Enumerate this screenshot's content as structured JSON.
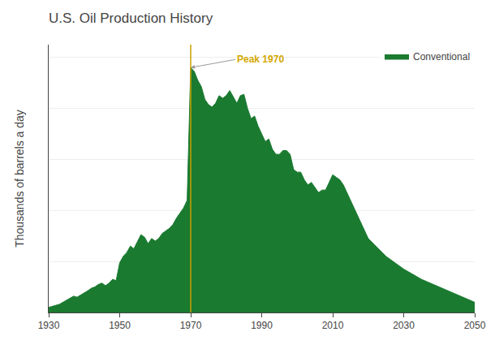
{
  "chart_data": {
    "type": "area",
    "title": "U.S. Oil Production History",
    "ylabel": "Thousands of barrels a day",
    "x": [
      1930,
      1931,
      1932,
      1933,
      1934,
      1935,
      1936,
      1937,
      1938,
      1939,
      1940,
      1941,
      1942,
      1943,
      1944,
      1945,
      1946,
      1947,
      1948,
      1949,
      1950,
      1951,
      1952,
      1953,
      1954,
      1955,
      1956,
      1957,
      1958,
      1959,
      1960,
      1961,
      1962,
      1963,
      1964,
      1965,
      1966,
      1967,
      1968,
      1969,
      1970,
      1971,
      1972,
      1973,
      1974,
      1975,
      1976,
      1977,
      1978,
      1979,
      1980,
      1981,
      1982,
      1983,
      1984,
      1985,
      1986,
      1987,
      1988,
      1989,
      1990,
      1991,
      1992,
      1993,
      1994,
      1995,
      1996,
      1997,
      1998,
      1999,
      2000,
      2001,
      2002,
      2003,
      2004,
      2005,
      2006,
      2007,
      2008,
      2009,
      2010,
      2011,
      2012,
      2013,
      2014,
      2015,
      2016,
      2017,
      2018,
      2019,
      2020,
      2025,
      2030,
      2035,
      2040,
      2045,
      2050
    ],
    "series": [
      {
        "name": "Conventional",
        "color": "#1a7a30",
        "values": [
          200,
          250,
          280,
          320,
          400,
          480,
          560,
          640,
          600,
          680,
          750,
          850,
          950,
          1000,
          1100,
          1150,
          1050,
          1150,
          1300,
          1250,
          1950,
          2200,
          2350,
          2600,
          2500,
          2800,
          3050,
          2950,
          2700,
          2900,
          2800,
          2900,
          3100,
          3200,
          3300,
          3450,
          3700,
          3900,
          4100,
          4400,
          9600,
          9450,
          9100,
          8850,
          8350,
          8150,
          8050,
          8200,
          8500,
          8400,
          8500,
          8700,
          8450,
          8200,
          8500,
          8550,
          8000,
          7600,
          7700,
          7300,
          7000,
          6700,
          6800,
          6400,
          6200,
          6200,
          6350,
          6350,
          6200,
          5600,
          5500,
          5500,
          5200,
          5000,
          5100,
          4900,
          4700,
          4800,
          4800,
          5100,
          5400,
          5300,
          5200,
          5000,
          4700,
          4400,
          4100,
          3800,
          3500,
          3200,
          2900,
          2200,
          1700,
          1300,
          1000,
          700,
          400
        ]
      }
    ],
    "xlim": [
      1930,
      2050
    ],
    "ylim": [
      0,
      10500
    ],
    "xticks": [
      1930,
      1950,
      1970,
      1990,
      2010,
      2030,
      2050
    ],
    "yticks": [
      2000,
      4000,
      6000,
      8000,
      10000
    ],
    "tick_labels": "x",
    "grid": true,
    "legend": "upper right",
    "vlines": [
      {
        "x": 1970,
        "color": "#c8a000"
      }
    ],
    "annotations": [
      {
        "text": "Peak 1970",
        "x": 1970,
        "color": "#d4a800"
      }
    ]
  }
}
